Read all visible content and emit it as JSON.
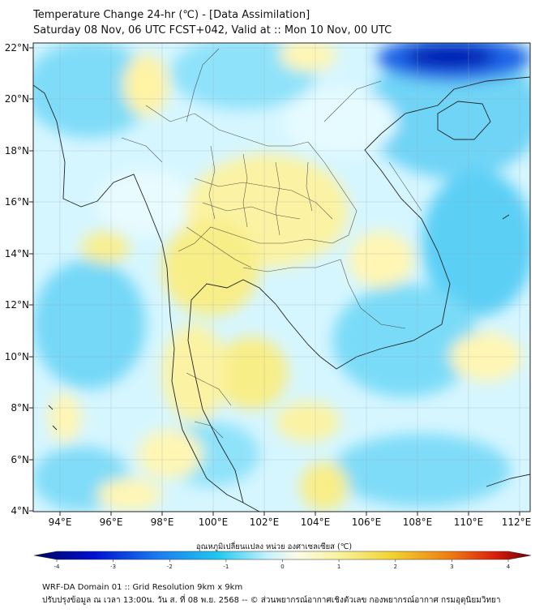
{
  "header": {
    "title_line1": "Temperature Change 24-hr (℃) - [Data Assimilation]",
    "title_line2": "Saturday 08 Nov, 06 UTC FCST+042, Valid at :: Mon 10 Nov, 00 UTC"
  },
  "map": {
    "lat_ticks": [
      "22°N",
      "20°N",
      "18°N",
      "16°N",
      "14°N",
      "12°N",
      "10°N",
      "8°N",
      "6°N",
      "4°N"
    ],
    "lon_ticks": [
      "94°E",
      "96°E",
      "98°E",
      "100°E",
      "102°E",
      "104°E",
      "106°E",
      "108°E",
      "110°E",
      "112°E"
    ],
    "lat_range": [
      4,
      22.3
    ],
    "lon_range": [
      93,
      112.4
    ],
    "grid": true,
    "field_colors": {
      "cold_strong": "#0011aa",
      "cold": "#29b6f6",
      "cool": "#a8ecff",
      "neutral": "#eafaff",
      "warm": "#fff7b0",
      "warm_strong": "#f7ec70"
    }
  },
  "colorbar": {
    "label": "อุณหภูมิเปลี่ยนแปลง หน่วย องศาเซลเซียส (℃)",
    "ticks": [
      "-4",
      "-3",
      "-2",
      "-1",
      "0",
      "1",
      "2",
      "3",
      "4"
    ],
    "range": [
      -4,
      4
    ]
  },
  "footer": {
    "line1": "WRF-DA Domain 01 :: Grid Resolution 9km x 9km",
    "line2": "ปรับปรุงข้อมูล ณ เวลา 13:00น. วัน ส. ที่ 08 พ.ย. 2568 -- © ส่วนพยากรณ์อากาศเชิงตัวเลข กองพยากรณ์อากาศ กรมอุตุนิยมวิทยา"
  }
}
